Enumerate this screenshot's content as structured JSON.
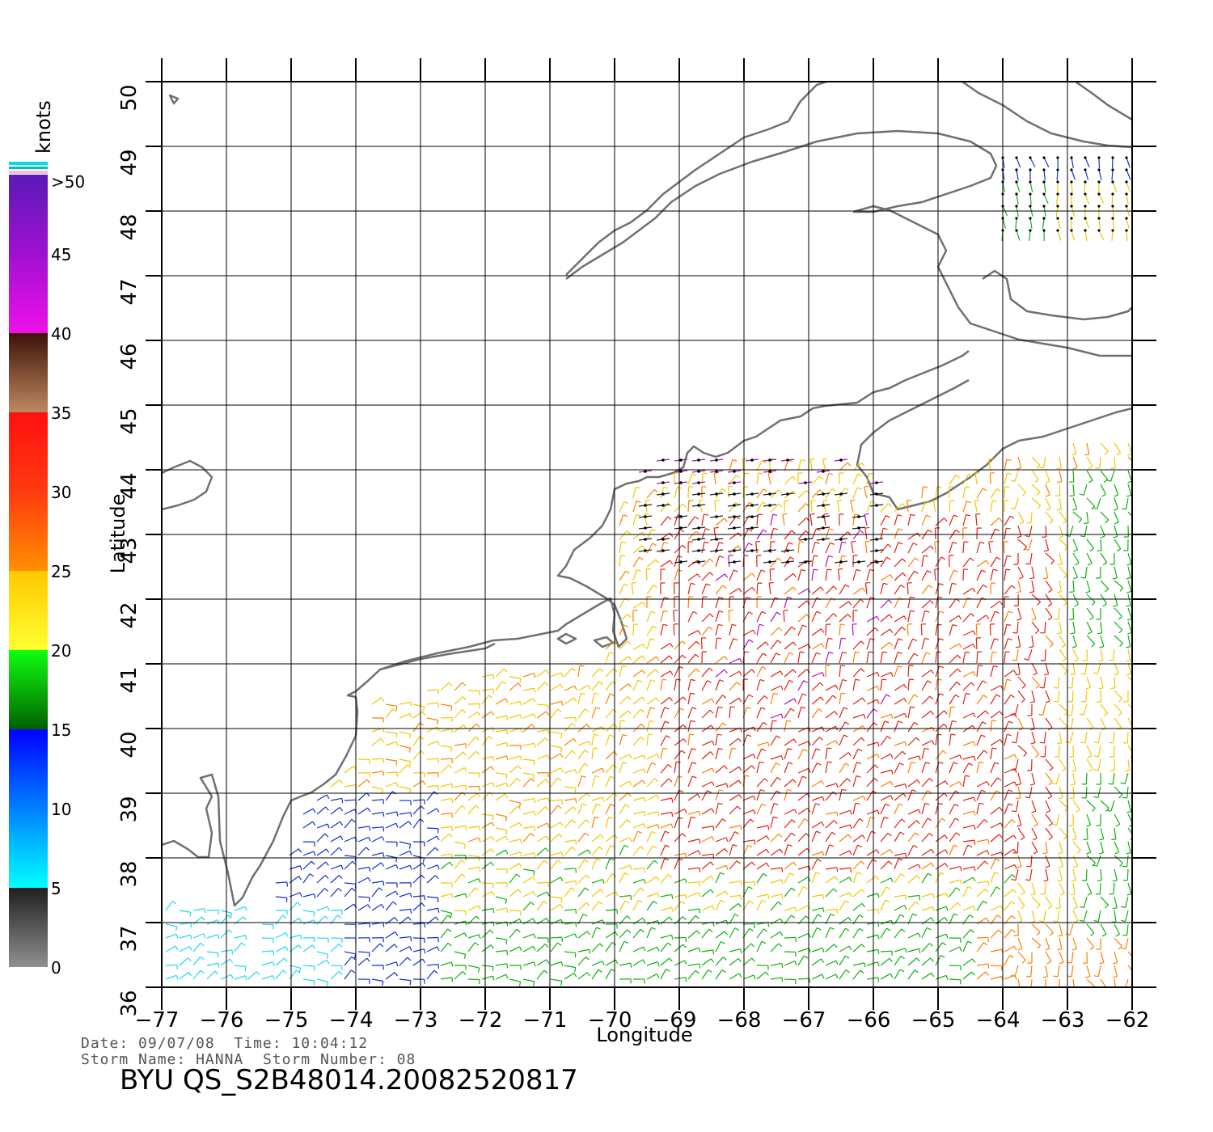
{
  "axes": {
    "xlabel": "Longitude",
    "ylabel": "Latitude",
    "lon_range": [
      -77,
      -62
    ],
    "lat_range": [
      36,
      50
    ],
    "lon_ticks": [
      "-77",
      "-76",
      "-75",
      "-74",
      "-73",
      "-72",
      "-71",
      "-70",
      "-69",
      "-68",
      "-67",
      "-66",
      "-65",
      "-64",
      "-63",
      "-62"
    ],
    "lat_ticks": [
      "36",
      "37",
      "38",
      "39",
      "40",
      "41",
      "42",
      "43",
      "44",
      "45",
      "46",
      "47",
      "48",
      "49",
      "50"
    ],
    "grid": true
  },
  "colorbar": {
    "unit": "knots",
    "labels": [
      ">50",
      "45",
      "40",
      "35",
      "30",
      "25",
      "20",
      "15",
      "10",
      "5",
      "0"
    ],
    "stops": [
      {
        "value": 50,
        "color": "#5a1ab8"
      },
      {
        "value": 45,
        "color": "#a010d0"
      },
      {
        "value": 40,
        "color": "#ee10e8"
      },
      {
        "value": 40,
        "color": "#3c1208"
      },
      {
        "value": 35,
        "color": "#c08860"
      },
      {
        "value": 35,
        "color": "#ff1010"
      },
      {
        "value": 30,
        "color": "#ff3a10"
      },
      {
        "value": 25,
        "color": "#ff9000"
      },
      {
        "value": 25,
        "color": "#ffc800"
      },
      {
        "value": 20,
        "color": "#ffff30"
      },
      {
        "value": 20,
        "color": "#10ff10"
      },
      {
        "value": 15,
        "color": "#006000"
      },
      {
        "value": 15,
        "color": "#0000ff"
      },
      {
        "value": 10,
        "color": "#0080ff"
      },
      {
        "value": 5,
        "color": "#00ffff"
      },
      {
        "value": 5,
        "color": "#202020"
      },
      {
        "value": 0,
        "color": "#909090"
      }
    ]
  },
  "wind_colors": {
    "calm": "#222222",
    "light": "#20d8f0",
    "blue": "#1030d0",
    "green": "#10b010",
    "yellow": "#f0c800",
    "orange": "#ff8000",
    "red": "#e02010",
    "magenta": "#b010c0"
  },
  "coast_color": "#707070",
  "footer": {
    "date_label": "Date:",
    "date": "09/07/08",
    "time_label": "Time:",
    "time": "10:04:12",
    "storm_name_label": "Storm Name:",
    "storm_name": "HANNA",
    "storm_number_label": "Storm Number:",
    "storm_number": "08"
  },
  "product": {
    "org": "BYU",
    "file": "QS_S2B48014.20082520817"
  }
}
